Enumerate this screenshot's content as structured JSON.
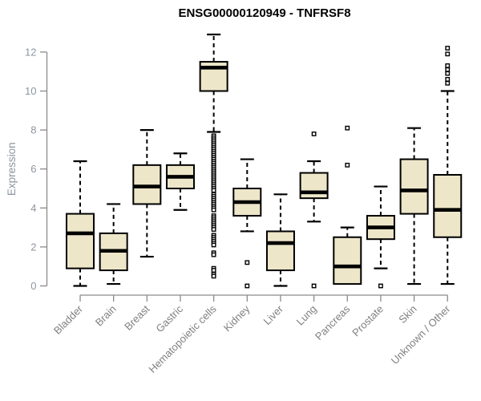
{
  "title": "ENSG00000120949 - TNFRSF8",
  "chart_data": {
    "type": "boxplot",
    "title": "ENSG00000120949 - TNFRSF8",
    "xlabel": "",
    "ylabel": "Expression",
    "ylim": [
      0,
      12
    ],
    "yticks": [
      0,
      2,
      4,
      6,
      8,
      10,
      12
    ],
    "grid": false,
    "legend": null,
    "categories": [
      "Bladder",
      "Brain",
      "Breast",
      "Gastric",
      "Hematopoietic cells",
      "Kidney",
      "Liver",
      "Lung",
      "Pancreas",
      "Prostate",
      "Skin",
      "Unknown / Other"
    ],
    "boxes": [
      {
        "category": "Bladder",
        "whisker_low": 0.0,
        "q1": 0.9,
        "median": 2.7,
        "q3": 3.7,
        "whisker_high": 6.4,
        "outliers": []
      },
      {
        "category": "Brain",
        "whisker_low": 0.1,
        "q1": 0.8,
        "median": 1.8,
        "q3": 2.7,
        "whisker_high": 4.2,
        "outliers": []
      },
      {
        "category": "Breast",
        "whisker_low": 1.5,
        "q1": 4.2,
        "median": 5.1,
        "q3": 6.2,
        "whisker_high": 8.0,
        "outliers": []
      },
      {
        "category": "Gastric",
        "whisker_low": 3.9,
        "q1": 5.0,
        "median": 5.6,
        "q3": 6.2,
        "whisker_high": 6.8,
        "outliers": []
      },
      {
        "category": "Hematopoietic cells",
        "whisker_low": 7.9,
        "q1": 10.0,
        "median": 11.2,
        "q3": 11.5,
        "whisker_high": 12.9,
        "outliers": [
          7.7,
          7.6,
          7.5,
          7.4,
          7.3,
          7.2,
          7.1,
          7.0,
          6.9,
          6.8,
          6.7,
          6.6,
          6.5,
          6.4,
          6.3,
          6.2,
          6.1,
          6.0,
          5.9,
          5.8,
          5.7,
          5.6,
          5.5,
          5.4,
          5.3,
          5.2,
          5.1,
          5.0,
          4.9,
          4.7,
          4.6,
          4.5,
          4.4,
          4.3,
          4.2,
          4.1,
          4.0,
          3.9,
          3.6,
          3.5,
          3.4,
          3.3,
          3.2,
          3.1,
          3.0,
          2.9,
          2.6,
          2.5,
          2.4,
          2.3,
          2.2,
          2.1,
          1.7,
          1.6,
          0.9,
          0.8,
          0.6,
          0.5
        ]
      },
      {
        "category": "Kidney",
        "whisker_low": 2.8,
        "q1": 3.6,
        "median": 4.3,
        "q3": 5.0,
        "whisker_high": 6.5,
        "outliers": [
          1.2,
          0.0
        ]
      },
      {
        "category": "Liver",
        "whisker_low": 0.0,
        "q1": 0.8,
        "median": 2.2,
        "q3": 2.8,
        "whisker_high": 4.7,
        "outliers": []
      },
      {
        "category": "Lung",
        "whisker_low": 3.3,
        "q1": 4.5,
        "median": 4.8,
        "q3": 5.8,
        "whisker_high": 6.4,
        "outliers": [
          7.8,
          0.0
        ]
      },
      {
        "category": "Pancreas",
        "whisker_low": 0.1,
        "q1": 0.1,
        "median": 1.0,
        "q3": 2.5,
        "whisker_high": 3.0,
        "outliers": [
          8.1,
          6.2
        ]
      },
      {
        "category": "Prostate",
        "whisker_low": 0.9,
        "q1": 2.4,
        "median": 3.0,
        "q3": 3.6,
        "whisker_high": 5.1,
        "outliers": [
          0.0
        ]
      },
      {
        "category": "Skin",
        "whisker_low": 0.1,
        "q1": 3.7,
        "median": 4.9,
        "q3": 6.5,
        "whisker_high": 8.1,
        "outliers": []
      },
      {
        "category": "Unknown / Other",
        "whisker_low": 0.1,
        "q1": 2.5,
        "median": 3.9,
        "q3": 5.7,
        "whisker_high": 10.0,
        "outliers": [
          12.2,
          11.9,
          11.3,
          11.1,
          10.9,
          10.6,
          10.4
        ]
      }
    ],
    "colors": {
      "box_fill": "#EDE6C9",
      "box_stroke": "#000000",
      "axis": "#8a8a8a",
      "y_tick_label": "#8e94a0",
      "x_tick_label": "#808080",
      "title": "#000000"
    }
  }
}
